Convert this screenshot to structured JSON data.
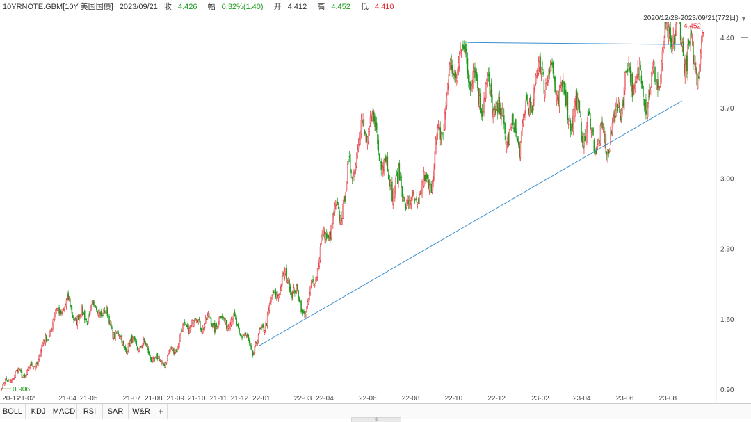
{
  "header": {
    "symbol": "10YRNOTE.GBM[10Y 美国国债]",
    "date": "2023/09/21",
    "close_label": "收",
    "close_value": "4.426",
    "change_label": "幅",
    "change_value": "0.32%(1.40)",
    "open_label": "开",
    "open_value": "4.412",
    "high_label": "高",
    "high_value": "4.452",
    "low_label": "低",
    "low_value": "4.410"
  },
  "range_label": "2020/12/28-2023/09/21(772日)",
  "indicator_tabs": [
    "BOLL",
    "KDJ",
    "MACD",
    "RSI",
    "SAR",
    "W&R",
    "+"
  ],
  "bottom_handle_label": "8",
  "colors": {
    "up": "#e3242b",
    "down": "#1a9a1a",
    "trendline": "#3a8fd0"
  },
  "chart_data": {
    "type": "candlestick",
    "x_ticks": [
      "20-12",
      "21-02",
      "21-04",
      "21-05",
      "21-07",
      "21-08",
      "21-09",
      "21-10",
      "21-11",
      "21-12",
      "22-01",
      "22-03",
      "22-04",
      "22-06",
      "22-08",
      "22-10",
      "22-12",
      "23-02",
      "23-04",
      "23-06",
      "23-08"
    ],
    "y_ticks": [
      "4.40",
      "3.70",
      "3.00",
      "2.30",
      "1.60",
      "0.90"
    ],
    "ylim": [
      0.9,
      4.4
    ],
    "xlim": [
      "2020-12-28",
      "2023-09-21"
    ],
    "trading_days": 772,
    "grid": false,
    "key_points": [
      {
        "date": "2020-12-28",
        "close": 0.906
      },
      {
        "date": "2021-01-31",
        "close": 1.07
      },
      {
        "date": "2021-03-31",
        "close": 1.74
      },
      {
        "date": "2021-05-15",
        "close": 1.63
      },
      {
        "date": "2021-08-03",
        "close": 1.17
      },
      {
        "date": "2021-10-20",
        "close": 1.66
      },
      {
        "date": "2021-12-20",
        "close": 1.36
      },
      {
        "date": "2022-02-10",
        "close": 2.03
      },
      {
        "date": "2022-03-07",
        "close": 1.72
      },
      {
        "date": "2022-05-06",
        "close": 3.13
      },
      {
        "date": "2022-06-14",
        "close": 3.49
      },
      {
        "date": "2022-08-01",
        "close": 2.57
      },
      {
        "date": "2022-10-21",
        "close": 4.33
      },
      {
        "date": "2022-12-07",
        "close": 3.41
      },
      {
        "date": "2023-03-02",
        "close": 4.08
      },
      {
        "date": "2023-04-06",
        "close": 3.28
      },
      {
        "date": "2023-07-06",
        "close": 4.06
      },
      {
        "date": "2023-08-21",
        "close": 4.33
      },
      {
        "date": "2023-09-21",
        "close": 4.426
      }
    ],
    "annotations": [
      {
        "text": "0.906",
        "date": "2020-12-28",
        "value": 0.906
      },
      {
        "text": "4.452",
        "date": "2023-09-21",
        "value": 4.452
      }
    ],
    "trendlines": [
      {
        "from": {
          "date": "2021-12-28",
          "value": 1.33
        },
        "to": {
          "date": "2023-08-21",
          "value": 3.77
        }
      },
      {
        "from": {
          "date": "2022-10-21",
          "value": 4.35
        },
        "to": {
          "date": "2023-08-21",
          "value": 4.33
        }
      }
    ]
  }
}
